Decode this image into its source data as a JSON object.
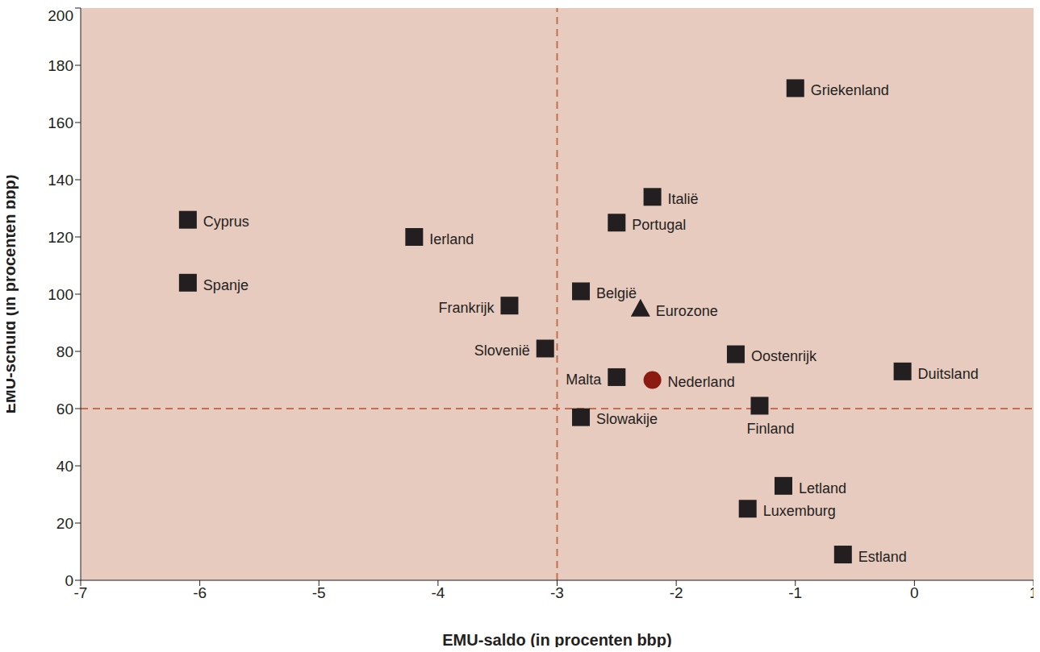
{
  "chart_data": {
    "type": "scatter",
    "x_label": "EMU-saldo (in procenten bbp)",
    "y_label": "EMU-schuld (in procenten bbp)",
    "xlim": [
      -7,
      1
    ],
    "xticks": [
      -7,
      -6,
      -5,
      -4,
      -3,
      -2,
      -1,
      0,
      1
    ],
    "ylim": [
      0,
      200
    ],
    "yticks": [
      0,
      20,
      40,
      60,
      80,
      100,
      120,
      140,
      160,
      180,
      200
    ],
    "grid": false,
    "reference_lines": [
      {
        "axis": "x",
        "value": -3
      },
      {
        "axis": "y",
        "value": 60
      }
    ],
    "series": [
      {
        "marker": "square",
        "color": "#231f20",
        "labels": [
          "Griekenland",
          "Italië",
          "Portugal",
          "Cyprus",
          "Ierland",
          "Spanje",
          "België",
          "Frankrijk",
          "Slovenië",
          "Oostenrijk",
          "Malta",
          "Duitsland",
          "Finland",
          "Slowakije",
          "Letland",
          "Luxemburg",
          "Estland"
        ],
        "x": [
          -1.0,
          -2.2,
          -2.5,
          -6.1,
          -4.2,
          -6.1,
          -2.8,
          -3.4,
          -3.1,
          -1.5,
          -2.5,
          -0.1,
          -1.3,
          -2.8,
          -1.1,
          -1.4,
          -0.6
        ],
        "y": [
          172,
          134,
          125,
          126,
          120,
          104,
          101,
          96,
          81,
          79,
          71,
          73,
          61,
          57,
          33,
          25,
          9
        ]
      },
      {
        "marker": "triangle",
        "color": "#231f20",
        "labels": [
          "Eurozone"
        ],
        "x": [
          -2.3
        ],
        "y": [
          95
        ]
      },
      {
        "marker": "circle",
        "color": "#8b1a10",
        "labels": [
          "Nederland"
        ],
        "x": [
          -2.2
        ],
        "y": [
          70
        ]
      }
    ]
  }
}
